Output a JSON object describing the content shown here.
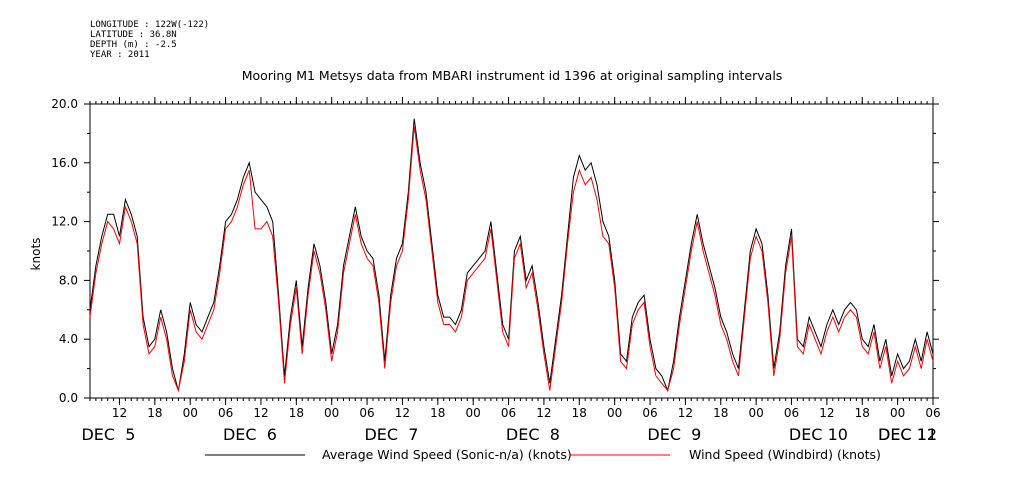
{
  "metadata": {
    "longitude": "LONGITUDE : 122W(-122)",
    "latitude": "LATITUDE : 36.8N",
    "depth": "DEPTH (m) : -2.5",
    "year": "YEAR : 2011"
  },
  "chart_data": {
    "type": "line",
    "title": "Mooring M1 Metsys data from MBARI instrument id 1396 at original sampling intervals",
    "ylabel": "knots",
    "xlabel": "",
    "ylim": [
      0,
      20
    ],
    "y_ticks": [
      "0.0",
      "4.0",
      "8.0",
      "12.0",
      "16.0",
      "20.0"
    ],
    "x_range_hours": [
      7,
      150
    ],
    "hour_ticks": [
      {
        "h": 12,
        "label": "12"
      },
      {
        "h": 18,
        "label": "18"
      },
      {
        "h": 24,
        "label": "00"
      },
      {
        "h": 30,
        "label": "06"
      },
      {
        "h": 36,
        "label": "12"
      },
      {
        "h": 42,
        "label": "18"
      },
      {
        "h": 48,
        "label": "00"
      },
      {
        "h": 54,
        "label": "06"
      },
      {
        "h": 60,
        "label": "12"
      },
      {
        "h": 66,
        "label": "18"
      },
      {
        "h": 72,
        "label": "00"
      },
      {
        "h": 78,
        "label": "06"
      },
      {
        "h": 84,
        "label": "12"
      },
      {
        "h": 90,
        "label": "18"
      },
      {
        "h": 96,
        "label": "00"
      },
      {
        "h": 102,
        "label": "06"
      },
      {
        "h": 108,
        "label": "12"
      },
      {
        "h": 114,
        "label": "18"
      },
      {
        "h": 120,
        "label": "00"
      },
      {
        "h": 126,
        "label": "06"
      },
      {
        "h": 132,
        "label": "12"
      },
      {
        "h": 138,
        "label": "18"
      },
      {
        "h": 144,
        "label": "00"
      },
      {
        "h": 150,
        "label": "06"
      }
    ],
    "day_labels": [
      {
        "h": 12,
        "label": "DEC  5"
      },
      {
        "h": 36,
        "label": "DEC  6"
      },
      {
        "h": 60,
        "label": "DEC  7"
      },
      {
        "h": 84,
        "label": "DEC  8"
      },
      {
        "h": 108,
        "label": "DEC  9"
      },
      {
        "h": 132,
        "label": "DEC 10"
      },
      {
        "h": 156,
        "label": "DEC 11"
      },
      {
        "h": 172,
        "label": "DEC 12"
      }
    ],
    "series": [
      {
        "name": "Average Wind Speed (Sonic-n/a) (knots)",
        "color": "#000000",
        "x_hours": [
          7,
          8,
          9,
          10,
          11,
          12,
          13,
          14,
          15,
          16,
          17,
          18,
          19,
          20,
          21,
          22,
          23,
          24,
          25,
          26,
          27,
          28,
          29,
          30,
          31,
          32,
          33,
          34,
          35,
          36,
          37,
          38,
          39,
          40,
          41,
          42,
          43,
          44,
          45,
          46,
          47,
          48,
          49,
          50,
          51,
          52,
          53,
          54,
          55,
          56,
          57,
          58,
          59,
          60,
          61,
          62,
          63,
          64,
          65,
          66,
          67,
          68,
          69,
          70,
          71,
          72,
          73,
          74,
          75,
          76,
          77,
          78,
          79,
          80,
          81,
          82,
          83,
          84,
          85,
          86,
          87,
          88,
          89,
          90,
          91,
          92,
          93,
          94,
          95,
          96,
          97,
          98,
          99,
          100,
          101,
          102,
          103,
          104,
          105,
          106,
          107,
          108,
          109,
          110,
          111,
          112,
          113,
          114,
          115,
          116,
          117,
          118,
          119,
          120,
          121,
          122,
          123,
          124,
          125,
          126,
          127,
          128,
          129,
          130,
          131,
          132,
          133,
          134,
          135,
          136,
          137,
          138,
          139,
          140,
          141,
          142,
          143,
          144,
          145,
          146,
          147,
          148,
          149,
          150
        ],
        "values": [
          6.0,
          9.0,
          11.0,
          12.5,
          12.5,
          11.0,
          13.5,
          12.5,
          11.0,
          5.5,
          3.5,
          4.0,
          6.0,
          4.5,
          2.0,
          0.5,
          3.0,
          6.5,
          5.0,
          4.5,
          5.5,
          6.5,
          9.0,
          12.0,
          12.5,
          13.5,
          15.0,
          16.0,
          14.0,
          13.5,
          13.0,
          12.0,
          7.0,
          1.5,
          5.5,
          8.0,
          3.5,
          7.5,
          10.5,
          9.0,
          6.5,
          3.0,
          5.0,
          9.0,
          11.0,
          13.0,
          11.0,
          10.0,
          9.5,
          7.0,
          2.5,
          7.0,
          9.5,
          10.5,
          14.0,
          19.0,
          16.0,
          14.0,
          10.5,
          7.0,
          5.5,
          5.5,
          5.0,
          6.0,
          8.5,
          9.0,
          9.5,
          10.0,
          12.0,
          8.5,
          5.0,
          4.0,
          10.0,
          11.0,
          8.0,
          9.0,
          6.5,
          3.5,
          1.0,
          4.0,
          7.0,
          11.0,
          15.0,
          16.5,
          15.5,
          16.0,
          14.5,
          12.0,
          11.0,
          8.0,
          3.0,
          2.5,
          5.5,
          6.5,
          7.0,
          4.0,
          2.0,
          1.5,
          0.5,
          2.5,
          5.5,
          8.0,
          10.5,
          12.5,
          10.5,
          9.0,
          7.5,
          5.5,
          4.5,
          3.0,
          2.0,
          6.0,
          10.0,
          11.5,
          10.5,
          7.0,
          2.0,
          4.5,
          9.0,
          11.5,
          4.0,
          3.5,
          5.5,
          4.5,
          3.5,
          5.0,
          6.0,
          5.0,
          6.0,
          6.5,
          6.0,
          4.0,
          3.5,
          5.0,
          2.5,
          4.0,
          1.5,
          3.0,
          2.0,
          2.5,
          4.0,
          2.5,
          4.5,
          3.0
        ]
      },
      {
        "name": "Wind Speed (Windbird) (knots)",
        "color": "#ff0000",
        "x_hours": [
          7,
          8,
          9,
          10,
          11,
          12,
          13,
          14,
          15,
          16,
          17,
          18,
          19,
          20,
          21,
          22,
          23,
          24,
          25,
          26,
          27,
          28,
          29,
          30,
          31,
          32,
          33,
          34,
          35,
          36,
          37,
          38,
          39,
          40,
          41,
          42,
          43,
          44,
          45,
          46,
          47,
          48,
          49,
          50,
          51,
          52,
          53,
          54,
          55,
          56,
          57,
          58,
          59,
          60,
          61,
          62,
          63,
          64,
          65,
          66,
          67,
          68,
          69,
          70,
          71,
          72,
          73,
          74,
          75,
          76,
          77,
          78,
          79,
          80,
          81,
          82,
          83,
          84,
          85,
          86,
          87,
          88,
          89,
          90,
          91,
          92,
          93,
          94,
          95,
          96,
          97,
          98,
          99,
          100,
          101,
          102,
          103,
          104,
          105,
          106,
          107,
          108,
          109,
          110,
          111,
          112,
          113,
          114,
          115,
          116,
          117,
          118,
          119,
          120,
          121,
          122,
          123,
          124,
          125,
          126,
          127,
          128,
          129,
          130,
          131,
          132,
          133,
          134,
          135,
          136,
          137,
          138,
          139,
          140,
          141,
          142,
          143,
          144,
          145,
          146,
          147,
          148,
          149,
          150
        ],
        "values": [
          5.5,
          8.5,
          10.5,
          12.0,
          11.5,
          10.5,
          13.0,
          12.0,
          10.5,
          5.0,
          3.0,
          3.5,
          5.5,
          4.0,
          1.5,
          0.5,
          2.5,
          6.0,
          4.5,
          4.0,
          5.0,
          6.0,
          8.5,
          11.5,
          12.0,
          13.0,
          14.5,
          15.5,
          11.5,
          11.5,
          12.0,
          11.0,
          6.5,
          1.0,
          5.0,
          7.5,
          3.0,
          7.0,
          10.0,
          8.5,
          6.0,
          2.5,
          4.5,
          8.5,
          10.5,
          12.5,
          10.5,
          9.5,
          9.0,
          6.5,
          2.0,
          6.5,
          9.0,
          10.0,
          13.5,
          18.5,
          15.5,
          13.5,
          10.0,
          6.5,
          5.0,
          5.0,
          4.5,
          5.5,
          8.0,
          8.5,
          9.0,
          9.5,
          11.5,
          8.0,
          4.5,
          3.5,
          9.5,
          10.5,
          7.5,
          8.5,
          6.0,
          3.0,
          0.5,
          3.5,
          6.5,
          10.5,
          14.0,
          15.5,
          14.5,
          15.0,
          13.5,
          11.0,
          10.5,
          7.5,
          2.5,
          2.0,
          5.0,
          6.0,
          6.5,
          3.5,
          1.5,
          1.0,
          0.5,
          2.0,
          5.0,
          7.5,
          10.0,
          12.0,
          10.0,
          8.5,
          7.0,
          5.0,
          4.0,
          2.5,
          1.5,
          5.5,
          9.5,
          11.0,
          10.0,
          6.5,
          1.5,
          4.0,
          8.5,
          11.0,
          3.5,
          3.0,
          5.0,
          4.0,
          3.0,
          4.5,
          5.5,
          4.5,
          5.5,
          6.0,
          5.5,
          3.5,
          3.0,
          4.5,
          2.0,
          3.5,
          1.0,
          2.5,
          1.5,
          2.0,
          3.5,
          2.0,
          4.0,
          2.5
        ]
      }
    ],
    "legend_placement": "bottom",
    "grid": false
  }
}
